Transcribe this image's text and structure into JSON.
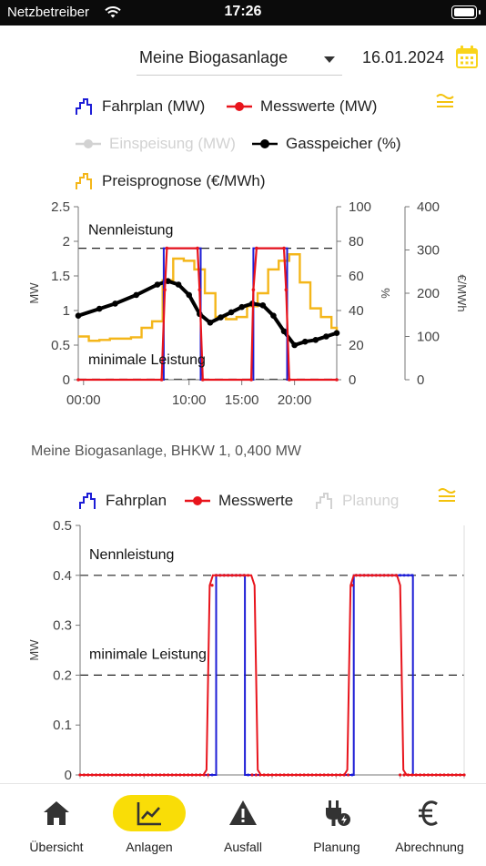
{
  "status": {
    "carrier": "Netzbetreiber",
    "time": "17:26"
  },
  "header": {
    "plant": "Meine Biogasanlage",
    "date": "16.01.2024"
  },
  "legend1": {
    "fahrplan": "Fahrplan (MW)",
    "messwerte": "Messwerte (MW)",
    "einspeisung": "Einspeisung (MW)",
    "gasspeicher": "Gasspeicher (%)",
    "preis": "Preisprognose (€/MWh)"
  },
  "caption": "Meine Biogasanlage, BHKW 1, 0,400 MW",
  "legend2": {
    "fahrplan": "Fahrplan",
    "messwerte": "Messwerte",
    "planung": "Planung"
  },
  "colors": {
    "fahrplan": "#1d1dd6",
    "messwerte": "#e8141c",
    "gasspeicher": "#000000",
    "preis": "#f4b61a",
    "accent": "#f9dd07",
    "inactive": "#d2d2d2"
  },
  "chart_data": [
    {
      "type": "line",
      "title": "",
      "x_ticks": [
        "00:00",
        "10:00",
        "15:00",
        "20:00"
      ],
      "x_range_hours": [
        -0.5,
        24
      ],
      "ylabel_left": "MW",
      "ylim_left": [
        0,
        2.5
      ],
      "yticks_left": [
        "0",
        "0.5",
        "1",
        "1.5",
        "2",
        "2.5"
      ],
      "ylabel_right1": "%",
      "ylim_right1": [
        0,
        100
      ],
      "yticks_right1": [
        "0",
        "20",
        "40",
        "60",
        "80",
        "100"
      ],
      "ylabel_right2": "€/MWh",
      "ylim_right2": [
        0,
        400
      ],
      "yticks_right2": [
        "0",
        "100",
        "200",
        "300",
        "400"
      ],
      "reference_lines": [
        {
          "label": "Nennleistung",
          "value": 1.9
        },
        {
          "label": "minimale Leistung",
          "value": 0
        }
      ],
      "series": [
        {
          "name": "Fahrplan (MW)",
          "axis": "left",
          "hours": [
            -0.5,
            7.6,
            7.6,
            11.1,
            11.1,
            16.1,
            16.1,
            19.3,
            19.3,
            24
          ],
          "values": [
            0,
            0,
            1.9,
            1.9,
            0,
            0,
            1.9,
            1.9,
            0,
            0
          ]
        },
        {
          "name": "Messwerte (MW)",
          "axis": "left",
          "hours": [
            -0.5,
            7.4,
            7.7,
            7.9,
            10.8,
            11.0,
            11.3,
            15.9,
            16.1,
            16.4,
            19.0,
            19.2,
            19.5,
            24
          ],
          "values": [
            0,
            0,
            1.3,
            1.9,
            1.9,
            1.3,
            0,
            0,
            1.3,
            1.9,
            1.9,
            1.3,
            0,
            0
          ]
        },
        {
          "name": "Gasspeicher (%)",
          "axis": "right1",
          "hours": [
            -0.5,
            1.5,
            3,
            5,
            7,
            8,
            9,
            10,
            11,
            12,
            13,
            14,
            15,
            16,
            17,
            18,
            19,
            20,
            21,
            22,
            23,
            24
          ],
          "values": [
            37,
            41,
            44,
            49,
            55,
            57,
            55,
            49,
            38,
            33,
            36,
            39,
            42,
            44,
            43,
            37,
            28,
            20,
            22,
            23,
            25,
            27
          ]
        },
        {
          "name": "Preisprognose (€/MWh)",
          "axis": "right2",
          "hours": [
            -0.5,
            0.5,
            1.5,
            2.5,
            3.5,
            4.5,
            5.5,
            6.5,
            7.5,
            8.5,
            9.5,
            10.5,
            11.5,
            12.5,
            13.5,
            14.5,
            15.5,
            16.5,
            17.5,
            18.5,
            19.5,
            20.5,
            21.5,
            22.5,
            23.5,
            24
          ],
          "values": [
            100,
            90,
            92,
            95,
            95,
            98,
            120,
            135,
            230,
            280,
            275,
            255,
            200,
            145,
            140,
            145,
            170,
            200,
            255,
            275,
            290,
            225,
            165,
            145,
            120,
            115
          ]
        }
      ]
    },
    {
      "type": "line",
      "title": "",
      "ylabel": "MW",
      "ylim": [
        0,
        0.5
      ],
      "yticks": [
        "0",
        "0.1",
        "0.2",
        "0.3",
        "0.4",
        "0.5"
      ],
      "x_range_hours": [
        0,
        24
      ],
      "reference_lines": [
        {
          "label": "Nennleistung",
          "value": 0.4
        },
        {
          "label": "minimale Leistung",
          "value": 0.2
        }
      ],
      "series": [
        {
          "name": "Fahrplan",
          "hours": [
            0,
            8.5,
            8.5,
            10.3,
            10.3,
            17.1,
            17.1,
            20.8,
            20.8,
            24
          ],
          "values": [
            0,
            0,
            0.4,
            0.4,
            0,
            0,
            0.4,
            0.4,
            0,
            0
          ]
        },
        {
          "name": "Messwerte",
          "hours": [
            0,
            7.7,
            7.9,
            8.1,
            8.3,
            10.7,
            10.9,
            11.1,
            11.3,
            16.5,
            16.7,
            16.9,
            17.1,
            19.8,
            20.0,
            20.2,
            20.4,
            24
          ],
          "values": [
            0,
            0,
            0.01,
            0.38,
            0.4,
            0.4,
            0.38,
            0.01,
            0,
            0,
            0.01,
            0.38,
            0.4,
            0.4,
            0.38,
            0.01,
            0,
            0
          ]
        }
      ]
    }
  ],
  "tabs": [
    {
      "label": "Übersicht",
      "icon": "home-icon"
    },
    {
      "label": "Anlagen",
      "icon": "chart-icon"
    },
    {
      "label": "Ausfall",
      "icon": "warning-icon"
    },
    {
      "label": "Planung",
      "icon": "plug-icon"
    },
    {
      "label": "Abrechnung",
      "icon": "euro-icon"
    }
  ]
}
